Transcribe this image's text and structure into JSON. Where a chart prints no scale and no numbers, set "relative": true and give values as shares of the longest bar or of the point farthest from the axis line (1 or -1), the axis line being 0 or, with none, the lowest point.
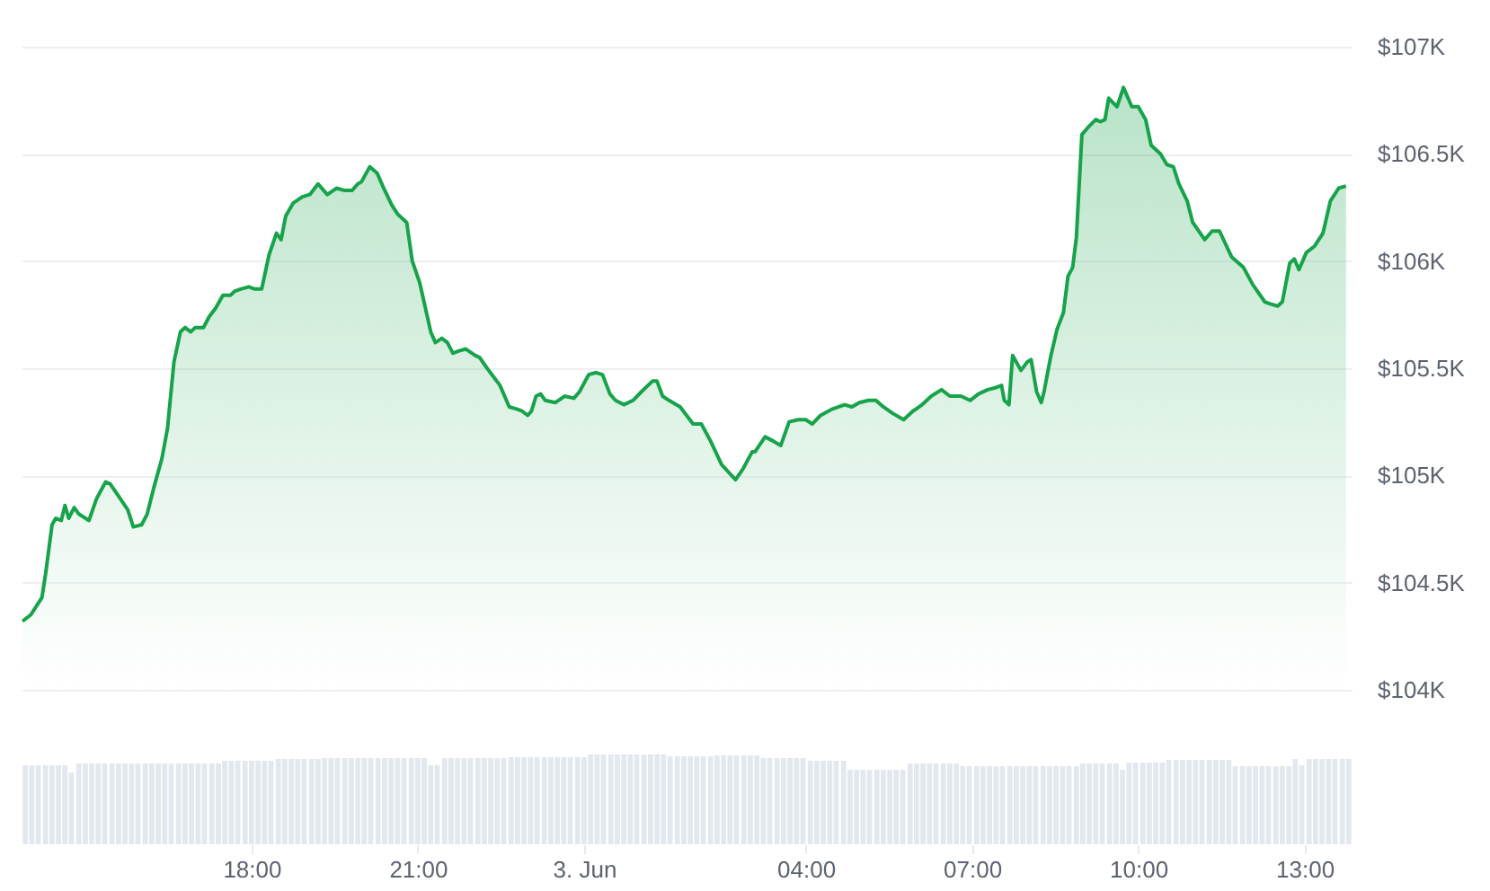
{
  "chart_data": [
    {
      "type": "area",
      "xlim": [
        "--06-02T13:51",
        "--06-03T13:51"
      ],
      "ylim": [
        104000,
        107000
      ],
      "yticks": [
        {
          "value": 104000,
          "label": "$104K"
        },
        {
          "value": 104500,
          "label": "$104.5K"
        },
        {
          "value": 105000,
          "label": "$105K"
        },
        {
          "value": 105500,
          "label": "$105.5K"
        },
        {
          "value": 106000,
          "label": "$106K"
        },
        {
          "value": 106500,
          "label": "$106.5K"
        },
        {
          "value": 107000,
          "label": "$107K"
        }
      ],
      "tick_labels": "y",
      "grid": "y",
      "series": [
        {
          "color": "#16a34a",
          "x": [
            "--06-02T13:52",
            "--06-02T14:01",
            "--06-02T14:13",
            "--06-02T14:17",
            "--06-02T14:24",
            "--06-02T14:28",
            "--06-02T14:34",
            "--06-02T14:38",
            "--06-02T14:42",
            "--06-02T14:48",
            "--06-02T14:53",
            "--06-02T15:04",
            "--06-02T15:12",
            "--06-02T15:22",
            "--06-02T15:27",
            "--06-02T15:35",
            "--06-02T15:46",
            "--06-02T15:52",
            "--06-02T16:01",
            "--06-02T16:07",
            "--06-02T16:14",
            "--06-02T16:23",
            "--06-02T16:29",
            "--06-02T16:36",
            "--06-02T16:43",
            "--06-02T16:48",
            "--06-02T16:54",
            "--06-02T16:59",
            "--06-02T17:08",
            "--06-02T17:14",
            "--06-02T17:21",
            "--06-02T17:29",
            "--06-02T17:37",
            "--06-02T17:42",
            "--06-02T17:49",
            "--06-02T17:57",
            "--06-02T18:03",
            "--06-02T18:11",
            "--06-02T18:19",
            "--06-02T18:27",
            "--06-02T18:32",
            "--06-02T18:37",
            "--06-02T18:45",
            "--06-02T18:55",
            "--06-02T19:03",
            "--06-02T19:12",
            "--06-02T19:22",
            "--06-02T19:32",
            "--06-02T19:40",
            "--06-02T19:49",
            "--06-02T19:55",
            "--06-02T19:59",
            "--06-02T20:08",
            "--06-02T20:16",
            "--06-02T20:22",
            "--06-02T20:32",
            "--06-02T20:38",
            "--06-02T20:48",
            "--06-02T20:54",
            "--06-02T21:02",
            "--06-02T21:14",
            "--06-02T21:19",
            "--06-02T21:26",
            "--06-02T21:32",
            "--06-02T21:38",
            "--06-02T21:44",
            "--06-02T21:52",
            "--06-02T22:02",
            "--06-02T22:07",
            "--06-02T22:15",
            "--06-02T22:29",
            "--06-02T22:39",
            "--06-02T22:47",
            "--06-02T22:53",
            "--06-02T22:59",
            "--06-02T23:03",
            "--06-02T23:08",
            "--06-02T23:13",
            "--06-02T23:18",
            "--06-02T23:29",
            "--06-02T23:39",
            "--06-02T23:49",
            "--06-02T23:55",
            "--06-03T00:05",
            "--06-03T00:13",
            "--06-03T00:20",
            "--06-03T00:28",
            "--06-03T00:34",
            "--06-03T00:43",
            "--06-03T00:53",
            "--06-03T01:02",
            "--06-03T01:14",
            "--06-03T01:19",
            "--06-03T01:25",
            "--06-03T01:32",
            "--06-03T01:44",
            "--06-03T01:58",
            "--06-03T02:07",
            "--06-03T02:17",
            "--06-03T02:29",
            "--06-03T02:44",
            "--06-03T02:52",
            "--06-03T03:02",
            "--06-03T03:05",
            "--06-03T03:16",
            "--06-03T03:25",
            "--06-03T03:33",
            "--06-03T03:42",
            "--06-03T03:52",
            "--06-03T04:00",
            "--06-03T04:07",
            "--06-03T04:16",
            "--06-03T04:29",
            "--06-03T04:42",
            "--06-03T04:50",
            "--06-03T04:58",
            "--06-03T05:08",
            "--06-03T05:16",
            "--06-03T05:24",
            "--06-03T05:34",
            "--06-03T05:46",
            "--06-03T05:56",
            "--06-03T06:06",
            "--06-03T06:16",
            "--06-03T06:27",
            "--06-03T06:36",
            "--06-03T06:48",
            "--06-03T06:58",
            "--06-03T07:07",
            "--06-03T07:17",
            "--06-03T07:26",
            "--06-03T07:32",
            "--06-03T07:35",
            "--06-03T07:40",
            "--06-03T07:44",
            "--06-03T07:53",
            "--06-03T08:00",
            "--06-03T08:04",
            "--06-03T08:10",
            "--06-03T08:15",
            "--06-03T08:18",
            "--06-03T08:25",
            "--06-03T08:32",
            "--06-03T08:39",
            "--06-03T08:44",
            "--06-03T08:49",
            "--06-03T08:53",
            "--06-03T08:59",
            "--06-03T09:07",
            "--06-03T09:14",
            "--06-03T09:19",
            "--06-03T09:24",
            "--06-03T09:28",
            "--06-03T09:37",
            "--06-03T09:44",
            "--06-03T09:53",
            "--06-03T10:00",
            "--06-03T10:08",
            "--06-03T10:14",
            "--06-03T10:24",
            "--06-03T10:31",
            "--06-03T10:38",
            "--06-03T10:44",
            "--06-03T10:53",
            "--06-03T10:59",
            "--06-03T11:12",
            "--06-03T11:20",
            "--06-03T11:28",
            "--06-03T11:41",
            "--06-03T11:54",
            "--06-03T12:04",
            "--06-03T12:17",
            "--06-03T12:23",
            "--06-03T12:31",
            "--06-03T12:36",
            "--06-03T12:44",
            "--06-03T12:49",
            "--06-03T12:54",
            "--06-03T13:02",
            "--06-03T13:11",
            "--06-03T13:20",
            "--06-03T13:28",
            "--06-03T13:37",
            "--06-03T13:45"
          ],
          "values": [
            104320,
            104350,
            104430,
            104540,
            104770,
            104800,
            104790,
            104860,
            104800,
            104850,
            104820,
            104790,
            104890,
            104970,
            104960,
            104910,
            104840,
            104760,
            104770,
            104820,
            104940,
            105080,
            105220,
            105530,
            105670,
            105690,
            105670,
            105690,
            105690,
            105740,
            105780,
            105840,
            105840,
            105860,
            105870,
            105880,
            105870,
            105870,
            106030,
            106130,
            106100,
            106210,
            106270,
            106300,
            106310,
            106360,
            106310,
            106340,
            106330,
            106330,
            106360,
            106370,
            106440,
            106410,
            106350,
            106260,
            106220,
            106180,
            106000,
            105900,
            105670,
            105620,
            105640,
            105620,
            105570,
            105580,
            105590,
            105560,
            105550,
            105500,
            105420,
            105320,
            105310,
            105300,
            105280,
            105300,
            105370,
            105380,
            105350,
            105340,
            105370,
            105360,
            105390,
            105470,
            105480,
            105470,
            105380,
            105350,
            105330,
            105350,
            105390,
            105440,
            105440,
            105370,
            105350,
            105320,
            105240,
            105240,
            105160,
            105050,
            104980,
            105030,
            105110,
            105110,
            105180,
            105160,
            105140,
            105250,
            105260,
            105260,
            105240,
            105280,
            105310,
            105330,
            105320,
            105340,
            105350,
            105350,
            105320,
            105290,
            105260,
            105300,
            105330,
            105370,
            105400,
            105370,
            105370,
            105350,
            105380,
            105400,
            105410,
            105420,
            105350,
            105330,
            105560,
            105490,
            105530,
            105540,
            105390,
            105340,
            105390,
            105550,
            105680,
            105760,
            105930,
            105970,
            106110,
            106590,
            106630,
            106660,
            106650,
            106660,
            106760,
            106720,
            106810,
            106720,
            106720,
            106660,
            106540,
            106500,
            106450,
            106440,
            106360,
            106280,
            106180,
            106100,
            106140,
            106140,
            106020,
            105970,
            105890,
            105810,
            105800,
            105790,
            105810,
            105990,
            106010,
            105960,
            106040,
            106070,
            106130,
            106280,
            106340,
            106350
          ]
        }
      ]
    },
    {
      "type": "bar",
      "relative": true,
      "xlim": [
        "--06-02T13:51",
        "--06-03T13:51"
      ],
      "xticks": [
        {
          "value": "--06-02T18:00",
          "label": "18:00"
        },
        {
          "value": "--06-02T21:00",
          "label": "21:00"
        },
        {
          "value": "--06-03T00:00",
          "label": "3. Jun"
        },
        {
          "value": "--06-03T04:00",
          "label": "04:00"
        },
        {
          "value": "--06-03T07:00",
          "label": "07:00"
        },
        {
          "value": "--06-03T10:00",
          "label": "10:00"
        },
        {
          "value": "--06-03T13:00",
          "label": "13:00"
        }
      ],
      "series": [
        {
          "color": "#e3e8ee",
          "x": [
            "--06-02T13:55",
            "--06-02T14:02",
            "--06-02T14:09",
            "--06-02T14:17",
            "--06-02T14:24",
            "--06-02T14:31",
            "--06-02T14:38",
            "--06-02T14:45",
            "--06-02T14:53",
            "--06-02T15:00",
            "--06-02T15:07",
            "--06-02T15:14",
            "--06-02T15:21",
            "--06-02T15:29",
            "--06-02T15:36",
            "--06-02T15:43",
            "--06-02T15:50",
            "--06-02T15:57",
            "--06-02T16:05",
            "--06-02T16:12",
            "--06-02T16:19",
            "--06-02T16:26",
            "--06-02T16:33",
            "--06-02T16:41",
            "--06-02T16:48",
            "--06-02T16:55",
            "--06-02T17:02",
            "--06-02T17:09",
            "--06-02T17:17",
            "--06-02T17:24",
            "--06-02T17:31",
            "--06-02T17:38",
            "--06-02T17:45",
            "--06-02T17:53",
            "--06-02T18:00",
            "--06-02T18:07",
            "--06-02T18:14",
            "--06-02T18:21",
            "--06-02T18:29",
            "--06-02T18:36",
            "--06-02T18:43",
            "--06-02T18:50",
            "--06-02T18:57",
            "--06-02T19:05",
            "--06-02T19:12",
            "--06-02T19:19",
            "--06-02T19:26",
            "--06-02T19:33",
            "--06-02T19:41",
            "--06-02T19:48",
            "--06-02T19:55",
            "--06-02T20:02",
            "--06-02T20:09",
            "--06-02T20:17",
            "--06-02T20:24",
            "--06-02T20:31",
            "--06-02T20:38",
            "--06-02T20:45",
            "--06-02T20:53",
            "--06-02T21:00",
            "--06-02T21:07",
            "--06-02T21:14",
            "--06-02T21:21",
            "--06-02T21:29",
            "--06-02T21:36",
            "--06-02T21:43",
            "--06-02T21:50",
            "--06-02T21:57",
            "--06-02T22:05",
            "--06-02T22:12",
            "--06-02T22:19",
            "--06-02T22:26",
            "--06-02T22:33",
            "--06-02T22:41",
            "--06-02T22:48",
            "--06-02T22:55",
            "--06-02T23:02",
            "--06-02T23:09",
            "--06-02T23:17",
            "--06-02T23:24",
            "--06-02T23:31",
            "--06-02T23:38",
            "--06-02T23:45",
            "--06-02T23:53",
            "--06-03T00:00",
            "--06-03T00:07",
            "--06-03T00:14",
            "--06-03T00:21",
            "--06-03T00:29",
            "--06-03T00:36",
            "--06-03T00:43",
            "--06-03T00:50",
            "--06-03T00:57",
            "--06-03T01:05",
            "--06-03T01:12",
            "--06-03T01:19",
            "--06-03T01:26",
            "--06-03T01:33",
            "--06-03T01:41",
            "--06-03T01:48",
            "--06-03T01:55",
            "--06-03T02:02",
            "--06-03T02:09",
            "--06-03T02:17",
            "--06-03T02:24",
            "--06-03T02:31",
            "--06-03T02:38",
            "--06-03T02:45",
            "--06-03T02:53",
            "--06-03T03:00",
            "--06-03T03:07",
            "--06-03T03:14",
            "--06-03T03:21",
            "--06-03T03:29",
            "--06-03T03:36",
            "--06-03T03:43",
            "--06-03T03:50",
            "--06-03T03:57",
            "--06-03T04:05",
            "--06-03T04:12",
            "--06-03T04:19",
            "--06-03T04:26",
            "--06-03T04:33",
            "--06-03T04:41",
            "--06-03T04:48",
            "--06-03T04:55",
            "--06-03T05:02",
            "--06-03T05:09",
            "--06-03T05:17",
            "--06-03T05:24",
            "--06-03T05:31",
            "--06-03T05:38",
            "--06-03T05:45",
            "--06-03T05:53",
            "--06-03T06:00",
            "--06-03T06:07",
            "--06-03T06:14",
            "--06-03T06:21",
            "--06-03T06:29",
            "--06-03T06:36",
            "--06-03T06:43",
            "--06-03T06:50",
            "--06-03T06:57",
            "--06-03T07:05",
            "--06-03T07:12",
            "--06-03T07:19",
            "--06-03T07:26",
            "--06-03T07:33",
            "--06-03T07:41",
            "--06-03T07:48",
            "--06-03T07:55",
            "--06-03T08:02",
            "--06-03T08:09",
            "--06-03T08:17",
            "--06-03T08:24",
            "--06-03T08:31",
            "--06-03T08:38",
            "--06-03T08:45",
            "--06-03T08:53",
            "--06-03T09:00",
            "--06-03T09:07",
            "--06-03T09:14",
            "--06-03T09:21",
            "--06-03T09:29",
            "--06-03T09:36",
            "--06-03T09:43",
            "--06-03T09:50",
            "--06-03T09:57",
            "--06-03T10:05",
            "--06-03T10:12",
            "--06-03T10:19",
            "--06-03T10:26",
            "--06-03T10:33",
            "--06-03T10:41",
            "--06-03T10:48",
            "--06-03T10:55",
            "--06-03T11:02",
            "--06-03T11:09",
            "--06-03T11:17",
            "--06-03T11:24",
            "--06-03T11:31",
            "--06-03T11:38",
            "--06-03T11:45",
            "--06-03T11:53",
            "--06-03T12:00",
            "--06-03T12:07",
            "--06-03T12:14",
            "--06-03T12:21",
            "--06-03T12:29",
            "--06-03T12:36",
            "--06-03T12:43",
            "--06-03T12:50",
            "--06-03T12:57",
            "--06-03T13:05",
            "--06-03T13:12",
            "--06-03T13:19",
            "--06-03T13:26",
            "--06-03T13:33",
            "--06-03T13:41",
            "--06-03T13:48"
          ],
          "values": [
            0.88,
            0.88,
            0.88,
            0.88,
            0.88,
            0.88,
            0.88,
            0.8,
            0.9,
            0.9,
            0.9,
            0.9,
            0.9,
            0.9,
            0.9,
            0.9,
            0.9,
            0.9,
            0.9,
            0.9,
            0.9,
            0.9,
            0.9,
            0.9,
            0.9,
            0.9,
            0.9,
            0.9,
            0.9,
            0.9,
            0.93,
            0.93,
            0.93,
            0.93,
            0.93,
            0.93,
            0.93,
            0.93,
            0.95,
            0.95,
            0.95,
            0.95,
            0.95,
            0.95,
            0.95,
            0.96,
            0.96,
            0.96,
            0.96,
            0.96,
            0.96,
            0.96,
            0.96,
            0.96,
            0.96,
            0.96,
            0.96,
            0.96,
            0.96,
            0.96,
            0.96,
            0.88,
            0.88,
            0.96,
            0.96,
            0.96,
            0.96,
            0.96,
            0.96,
            0.96,
            0.96,
            0.96,
            0.96,
            0.97,
            0.97,
            0.97,
            0.97,
            0.97,
            0.97,
            0.97,
            0.97,
            0.97,
            0.97,
            0.97,
            0.97,
            1,
            1,
            1,
            1,
            1,
            1,
            1,
            1,
            1,
            1,
            1,
            1,
            0.98,
            0.98,
            0.98,
            0.98,
            0.98,
            0.98,
            0.98,
            0.99,
            0.99,
            0.99,
            0.99,
            0.99,
            0.99,
            0.99,
            0.96,
            0.96,
            0.96,
            0.96,
            0.96,
            0.96,
            0.96,
            0.93,
            0.93,
            0.93,
            0.93,
            0.93,
            0.93,
            0.83,
            0.83,
            0.83,
            0.83,
            0.83,
            0.83,
            0.83,
            0.83,
            0.83,
            0.9,
            0.9,
            0.9,
            0.9,
            0.9,
            0.9,
            0.9,
            0.9,
            0.87,
            0.87,
            0.87,
            0.87,
            0.87,
            0.87,
            0.87,
            0.87,
            0.87,
            0.87,
            0.87,
            0.87,
            0.87,
            0.87,
            0.87,
            0.87,
            0.87,
            0.87,
            0.9,
            0.9,
            0.9,
            0.9,
            0.9,
            0.9,
            0.83,
            0.91,
            0.91,
            0.91,
            0.91,
            0.91,
            0.91,
            0.94,
            0.94,
            0.94,
            0.94,
            0.94,
            0.94,
            0.94,
            0.94,
            0.94,
            0.94,
            0.87,
            0.87,
            0.87,
            0.87,
            0.87,
            0.87,
            0.87,
            0.87,
            0.87,
            0.95,
            0.88,
            0.95,
            0.95,
            0.95,
            0.95,
            0.95,
            0.95,
            0.95
          ]
        }
      ]
    }
  ]
}
